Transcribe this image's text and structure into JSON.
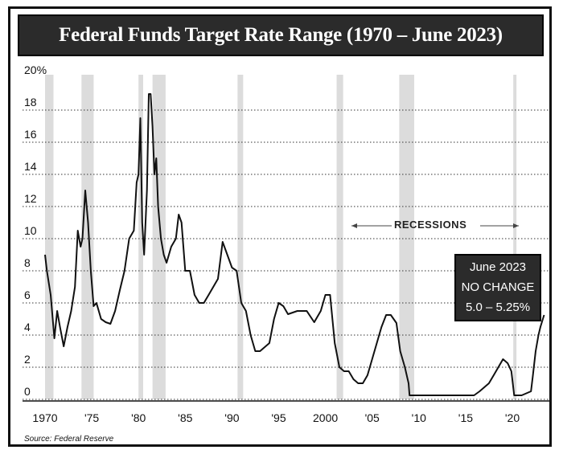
{
  "chart_data": {
    "type": "line",
    "title": "Federal Funds Target Rate Range (1970 – June 2023)",
    "ylim": [
      0,
      20
    ],
    "y_ticks": [
      "20%",
      "18",
      "16",
      "14",
      "12",
      "10",
      "8",
      "6",
      "4",
      "2",
      "0"
    ],
    "x_ticks": [
      "1970",
      "'75",
      "'80",
      "'85",
      "'90",
      "'95",
      "2000",
      "'05",
      "'10",
      "'15",
      "'20"
    ],
    "grid": true,
    "recessions_label": "RECESSIONS",
    "recessions": [
      [
        1970.0,
        1970.9
      ],
      [
        1973.9,
        1975.2
      ],
      [
        1980.0,
        1980.5
      ],
      [
        1981.5,
        1982.9
      ],
      [
        1990.6,
        1991.2
      ],
      [
        2001.2,
        2001.9
      ],
      [
        2007.9,
        2009.5
      ],
      [
        2020.1,
        2020.3
      ]
    ],
    "series": [
      {
        "x": [
          1970.0,
          1970.2,
          1970.6,
          1971.0,
          1971.3,
          1971.6,
          1972.0,
          1972.4,
          1972.8,
          1973.2,
          1973.5,
          1973.8,
          1974.0,
          1974.3,
          1974.6,
          1974.9,
          1975.2,
          1975.5,
          1976.0,
          1976.5,
          1977.0,
          1977.5,
          1978.0,
          1978.5,
          1979.0,
          1979.5,
          1979.8,
          1980.0,
          1980.2,
          1980.4,
          1980.6,
          1980.9,
          1981.1,
          1981.3,
          1981.5,
          1981.7,
          1981.9,
          1982.1,
          1982.4,
          1982.7,
          1983.0,
          1983.5,
          1984.0,
          1984.3,
          1984.6,
          1985.0,
          1985.5,
          1986.0,
          1986.5,
          1987.0,
          1987.5,
          1988.0,
          1988.5,
          1989.0,
          1989.5,
          1990.0,
          1990.5,
          1991.0,
          1991.5,
          1992.0,
          1992.5,
          1993.0,
          1994.0,
          1994.5,
          1995.0,
          1995.5,
          1996.0,
          1997.0,
          1998.0,
          1998.8,
          1999.0,
          1999.5,
          2000.0,
          2000.5,
          2001.0,
          2001.5,
          2002.0,
          2002.5,
          2003.0,
          2003.5,
          2004.0,
          2004.5,
          2005.0,
          2005.5,
          2006.0,
          2006.5,
          2007.0,
          2007.6,
          2008.0,
          2008.5,
          2008.9,
          2009.0,
          2012.0,
          2015.9,
          2016.5,
          2017.0,
          2017.5,
          2018.0,
          2018.5,
          2019.0,
          2019.5,
          2019.9,
          2020.2,
          2021.0,
          2022.0,
          2022.2,
          2022.5,
          2022.8,
          2023.0,
          2023.4
        ],
        "values": [
          9.0,
          8.0,
          6.5,
          3.8,
          5.5,
          4.5,
          3.3,
          4.5,
          5.5,
          7.0,
          10.5,
          9.5,
          10.0,
          13.0,
          11.0,
          8.0,
          5.8,
          6.0,
          5.0,
          4.8,
          4.7,
          5.5,
          6.8,
          8.0,
          10.0,
          10.5,
          13.5,
          14.0,
          17.5,
          11.0,
          9.0,
          13.0,
          19.0,
          19.0,
          17.0,
          14.0,
          15.0,
          12.0,
          10.0,
          9.0,
          8.5,
          9.5,
          10.0,
          11.5,
          11.0,
          8.0,
          8.0,
          6.5,
          6.0,
          6.0,
          6.5,
          7.0,
          7.5,
          9.8,
          9.0,
          8.2,
          8.0,
          6.0,
          5.5,
          4.0,
          3.0,
          3.0,
          3.5,
          5.0,
          6.0,
          5.8,
          5.3,
          5.5,
          5.5,
          4.8,
          5.0,
          5.5,
          6.5,
          6.5,
          3.5,
          2.0,
          1.75,
          1.75,
          1.25,
          1.0,
          1.0,
          1.5,
          2.5,
          3.5,
          4.5,
          5.25,
          5.25,
          4.75,
          3.0,
          2.0,
          1.0,
          0.25,
          0.25,
          0.25,
          0.5,
          0.75,
          1.0,
          1.5,
          2.0,
          2.5,
          2.25,
          1.75,
          0.25,
          0.25,
          0.5,
          1.5,
          3.0,
          4.0,
          4.5,
          5.25
        ]
      }
    ],
    "callout": {
      "lines": [
        "June 2023",
        "NO CHANGE",
        "5.0 – 5.25%"
      ]
    },
    "source": "Source: Federal Reserve"
  }
}
